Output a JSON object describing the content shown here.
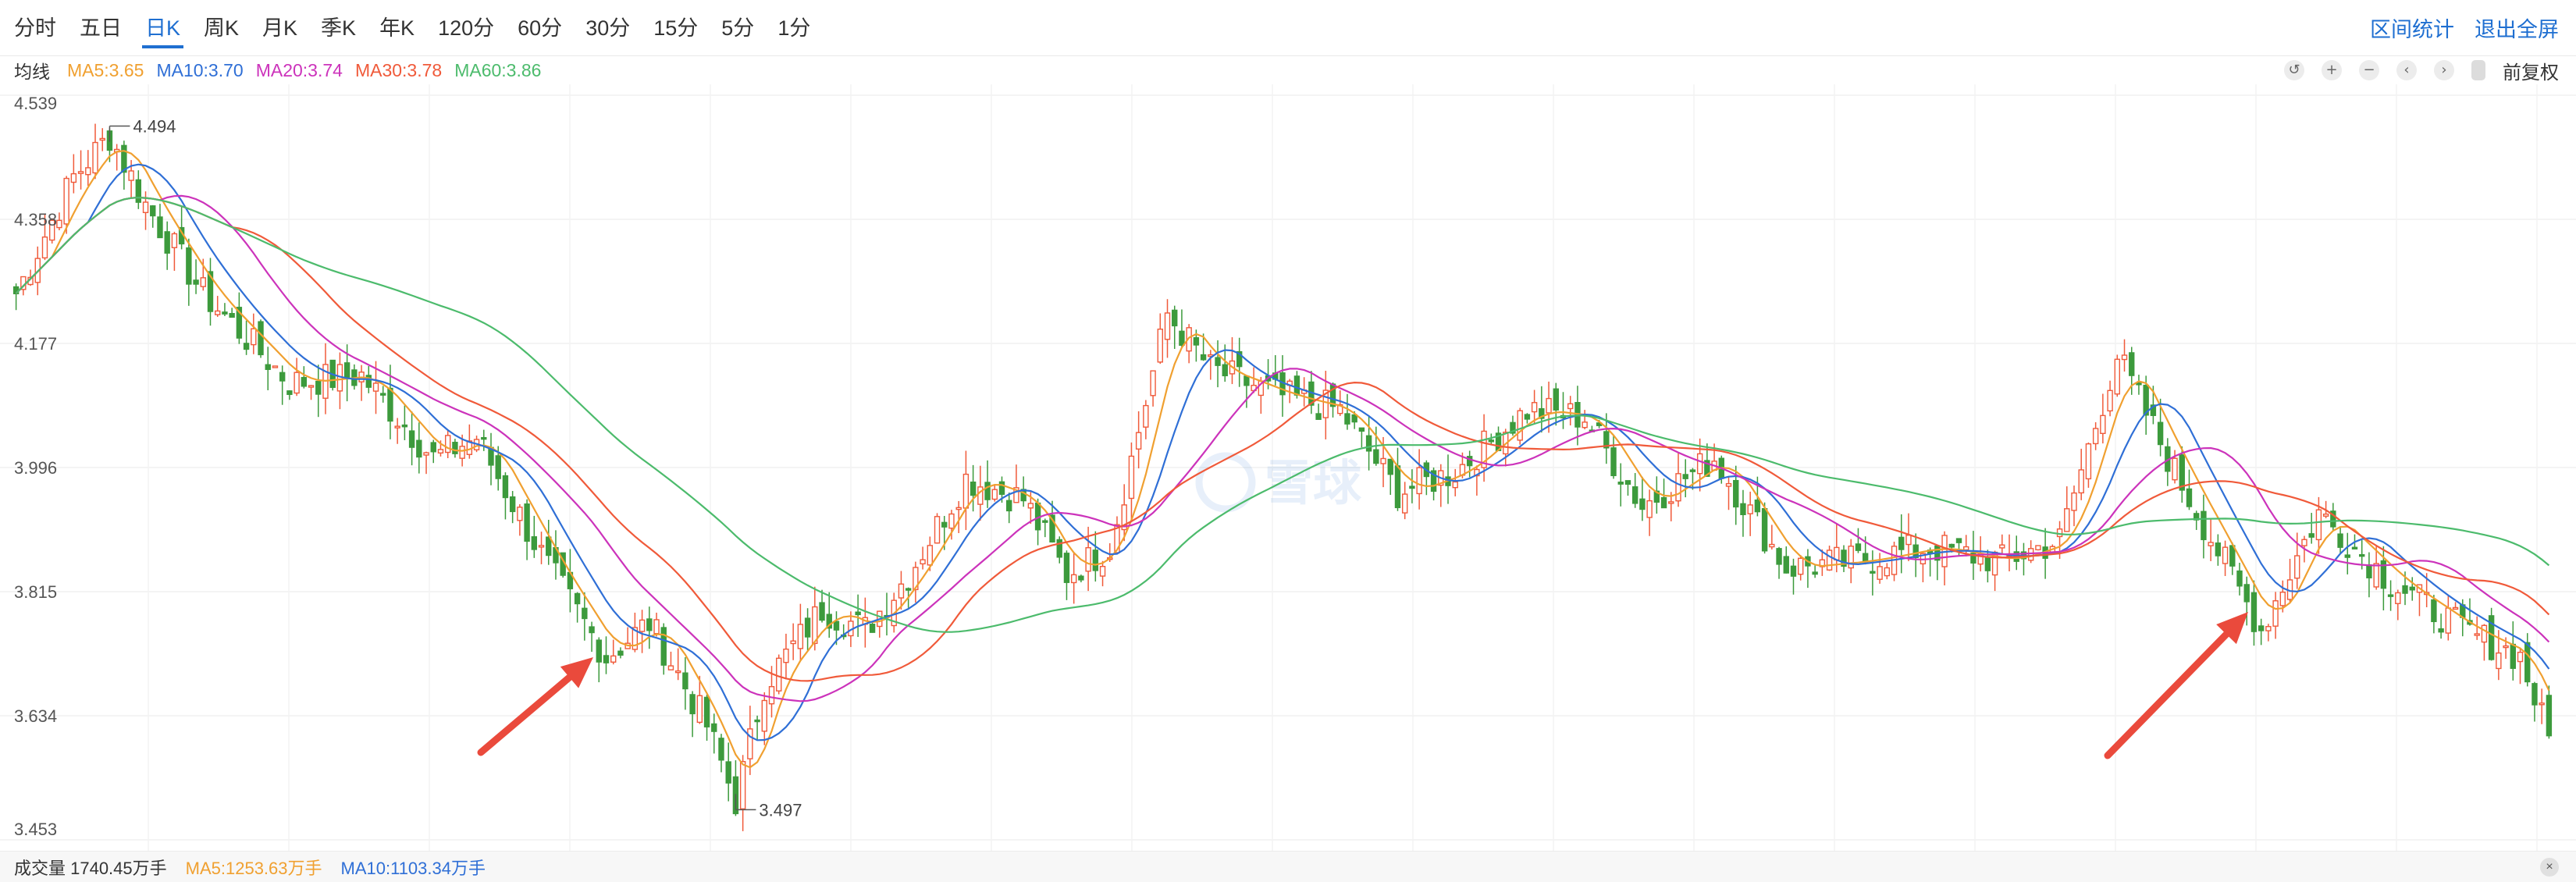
{
  "tabs": [
    {
      "label": "分时",
      "active": false
    },
    {
      "label": "五日",
      "active": false
    },
    {
      "label": "日K",
      "active": true
    },
    {
      "label": "周K",
      "active": false
    },
    {
      "label": "月K",
      "active": false
    },
    {
      "label": "季K",
      "active": false
    },
    {
      "label": "年K",
      "active": false
    },
    {
      "label": "120分",
      "active": false
    },
    {
      "label": "60分",
      "active": false
    },
    {
      "label": "30分",
      "active": false
    },
    {
      "label": "15分",
      "active": false
    },
    {
      "label": "5分",
      "active": false
    },
    {
      "label": "1分",
      "active": false
    }
  ],
  "top_actions": {
    "range_stats": "区间统计",
    "exit_fullscreen": "退出全屏"
  },
  "ma_legend": {
    "label": "均线",
    "items": [
      {
        "text": "MA5:3.65",
        "color": "#f0a030"
      },
      {
        "text": "MA10:3.70",
        "color": "#2f6fd6"
      },
      {
        "text": "MA20:3.74",
        "color": "#cc33bb"
      },
      {
        "text": "MA30:3.78",
        "color": "#f05a3a"
      },
      {
        "text": "MA60:3.86",
        "color": "#4cbb6c"
      }
    ]
  },
  "controls": {
    "undo": "↺",
    "zoom_in": "+",
    "zoom_out": "−",
    "prev": "‹",
    "next": "›",
    "fq_label": "前复权"
  },
  "volume": {
    "label": "成交量 1740.45万手",
    "ma5": {
      "text": "MA5:1253.63万手",
      "color": "#f0a030"
    },
    "ma10": {
      "text": "MA10:1103.34万手",
      "color": "#2f6fd6"
    },
    "close": "×"
  },
  "watermark": "雪球",
  "colors": {
    "up": "#f05a3a",
    "down": "#3c9a3c"
  },
  "chart_data": {
    "type": "candlestick",
    "period": "日K",
    "ylim": [
      3.453,
      4.539
    ],
    "y_ticks": [
      4.539,
      4.358,
      4.177,
      3.996,
      3.815,
      3.634,
      3.453
    ],
    "grid": true,
    "annotations": [
      {
        "text": "4.494",
        "value": 4.494,
        "type": "high"
      },
      {
        "text": "3.497",
        "value": 3.497,
        "type": "low"
      }
    ],
    "arrows": 2,
    "close_path": [
      [
        0,
        4.25
      ],
      [
        8,
        4.42
      ],
      [
        13,
        4.48
      ],
      [
        18,
        4.38
      ],
      [
        26,
        4.25
      ],
      [
        38,
        4.12
      ],
      [
        48,
        4.13
      ],
      [
        58,
        4.01
      ],
      [
        64,
        4.04
      ],
      [
        74,
        3.85
      ],
      [
        82,
        3.72
      ],
      [
        88,
        3.77
      ],
      [
        96,
        3.62
      ],
      [
        100,
        3.51
      ],
      [
        104,
        3.68
      ],
      [
        112,
        3.79
      ],
      [
        118,
        3.76
      ],
      [
        124,
        3.84
      ],
      [
        132,
        3.98
      ],
      [
        140,
        3.95
      ],
      [
        146,
        3.84
      ],
      [
        152,
        3.88
      ],
      [
        160,
        4.22
      ],
      [
        166,
        4.14
      ],
      [
        176,
        4.1
      ],
      [
        184,
        4.08
      ],
      [
        192,
        3.96
      ],
      [
        200,
        3.99
      ],
      [
        210,
        4.08
      ],
      [
        218,
        4.07
      ],
      [
        226,
        3.94
      ],
      [
        236,
        4.01
      ],
      [
        246,
        3.85
      ],
      [
        256,
        3.86
      ],
      [
        266,
        3.88
      ],
      [
        276,
        3.86
      ],
      [
        284,
        3.89
      ],
      [
        292,
        4.16
      ],
      [
        300,
        3.99
      ],
      [
        312,
        3.76
      ],
      [
        320,
        3.93
      ],
      [
        330,
        3.83
      ],
      [
        340,
        3.76
      ],
      [
        348,
        3.72
      ],
      [
        352,
        3.6
      ]
    ],
    "ma_series": [
      {
        "name": "MA5",
        "lag": 2.5,
        "color": "#f0a030"
      },
      {
        "name": "MA10",
        "lag": 5,
        "color": "#2f6fd6"
      },
      {
        "name": "MA20",
        "lag": 10,
        "color": "#cc33bb"
      },
      {
        "name": "MA30",
        "lag": 15,
        "color": "#f05a3a"
      },
      {
        "name": "MA60",
        "lag": 30,
        "color": "#4cbb6c"
      }
    ]
  }
}
